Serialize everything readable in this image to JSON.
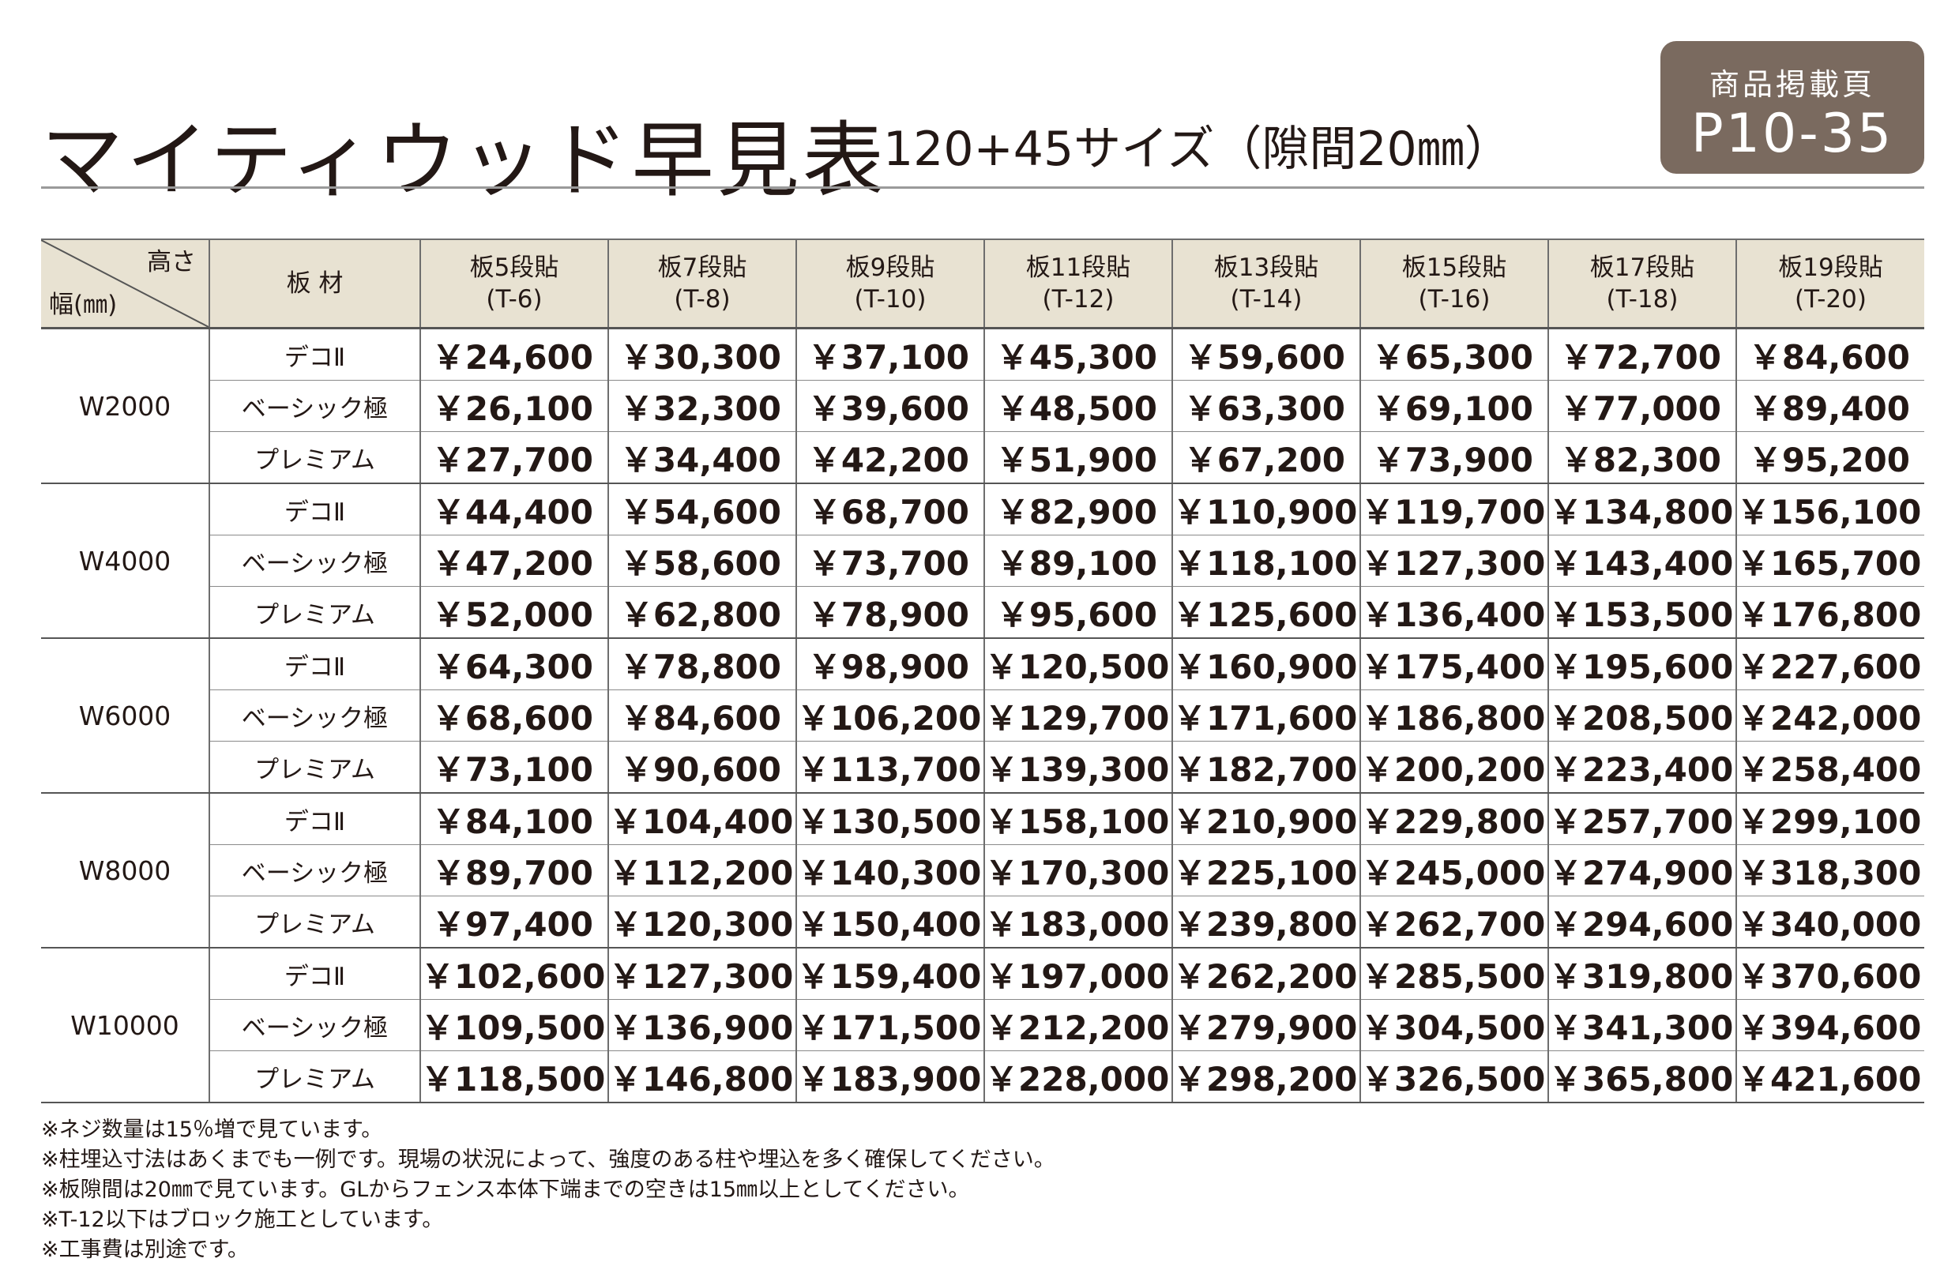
{
  "title": "マイティウッド早見表",
  "subtitle": "120+45サイズ（隙間20㎜）",
  "badge": {
    "line1": "商品掲載頁",
    "line2": "P10-35"
  },
  "table": {
    "corner": {
      "height_label": "高さ",
      "width_label": "幅(㎜)"
    },
    "material_header": "板 材",
    "columns": [
      {
        "name": "板5段貼",
        "code": "(T-6)"
      },
      {
        "name": "板7段貼",
        "code": "(T-8)"
      },
      {
        "name": "板9段貼",
        "code": "(T-10)"
      },
      {
        "name": "板11段貼",
        "code": "(T-12)"
      },
      {
        "name": "板13段貼",
        "code": "(T-14)"
      },
      {
        "name": "板15段貼",
        "code": "(T-16)"
      },
      {
        "name": "板17段貼",
        "code": "(T-18)"
      },
      {
        "name": "板19段貼",
        "code": "(T-20)"
      }
    ],
    "groups": [
      {
        "width": "W2000",
        "rows": [
          {
            "material": "デコⅡ",
            "prices": [
              "￥24,600",
              "￥30,300",
              "￥37,100",
              "￥45,300",
              "￥59,600",
              "￥65,300",
              "￥72,700",
              "￥84,600"
            ]
          },
          {
            "material": "ベーシック極",
            "prices": [
              "￥26,100",
              "￥32,300",
              "￥39,600",
              "￥48,500",
              "￥63,300",
              "￥69,100",
              "￥77,000",
              "￥89,400"
            ]
          },
          {
            "material": "プレミアム",
            "prices": [
              "￥27,700",
              "￥34,400",
              "￥42,200",
              "￥51,900",
              "￥67,200",
              "￥73,900",
              "￥82,300",
              "￥95,200"
            ]
          }
        ]
      },
      {
        "width": "W4000",
        "rows": [
          {
            "material": "デコⅡ",
            "prices": [
              "￥44,400",
              "￥54,600",
              "￥68,700",
              "￥82,900",
              "￥110,900",
              "￥119,700",
              "￥134,800",
              "￥156,100"
            ]
          },
          {
            "material": "ベーシック極",
            "prices": [
              "￥47,200",
              "￥58,600",
              "￥73,700",
              "￥89,100",
              "￥118,100",
              "￥127,300",
              "￥143,400",
              "￥165,700"
            ]
          },
          {
            "material": "プレミアム",
            "prices": [
              "￥52,000",
              "￥62,800",
              "￥78,900",
              "￥95,600",
              "￥125,600",
              "￥136,400",
              "￥153,500",
              "￥176,800"
            ]
          }
        ]
      },
      {
        "width": "W6000",
        "rows": [
          {
            "material": "デコⅡ",
            "prices": [
              "￥64,300",
              "￥78,800",
              "￥98,900",
              "￥120,500",
              "￥160,900",
              "￥175,400",
              "￥195,600",
              "￥227,600"
            ]
          },
          {
            "material": "ベーシック極",
            "prices": [
              "￥68,600",
              "￥84,600",
              "￥106,200",
              "￥129,700",
              "￥171,600",
              "￥186,800",
              "￥208,500",
              "￥242,000"
            ]
          },
          {
            "material": "プレミアム",
            "prices": [
              "￥73,100",
              "￥90,600",
              "￥113,700",
              "￥139,300",
              "￥182,700",
              "￥200,200",
              "￥223,400",
              "￥258,400"
            ]
          }
        ]
      },
      {
        "width": "W8000",
        "rows": [
          {
            "material": "デコⅡ",
            "prices": [
              "￥84,100",
              "￥104,400",
              "￥130,500",
              "￥158,100",
              "￥210,900",
              "￥229,800",
              "￥257,700",
              "￥299,100"
            ]
          },
          {
            "material": "ベーシック極",
            "prices": [
              "￥89,700",
              "￥112,200",
              "￥140,300",
              "￥170,300",
              "￥225,100",
              "￥245,000",
              "￥274,900",
              "￥318,300"
            ]
          },
          {
            "material": "プレミアム",
            "prices": [
              "￥97,400",
              "￥120,300",
              "￥150,400",
              "￥183,000",
              "￥239,800",
              "￥262,700",
              "￥294,600",
              "￥340,000"
            ]
          }
        ]
      },
      {
        "width": "W10000",
        "rows": [
          {
            "material": "デコⅡ",
            "prices": [
              "￥102,600",
              "￥127,300",
              "￥159,400",
              "￥197,000",
              "￥262,200",
              "￥285,500",
              "￥319,800",
              "￥370,600"
            ]
          },
          {
            "material": "ベーシック極",
            "prices": [
              "￥109,500",
              "￥136,900",
              "￥171,500",
              "￥212,200",
              "￥279,900",
              "￥304,500",
              "￥341,300",
              "￥394,600"
            ]
          },
          {
            "material": "プレミアム",
            "prices": [
              "￥118,500",
              "￥146,800",
              "￥183,900",
              "￥228,000",
              "￥298,200",
              "￥326,500",
              "￥365,800",
              "￥421,600"
            ]
          }
        ]
      }
    ]
  },
  "notes": [
    "※ネジ数量は15％増で見ています。",
    "※柱埋込寸法はあくまでも一例です。現場の状況によって、強度のある柱や埋込を多く確保してください。",
    "※板隙間は20㎜で見ています。GLからフェンス本体下端までの空きは15㎜以上としてください。",
    "※T-12以下はブロック施工としています。",
    "※工事費は別途です。"
  ],
  "colors": {
    "badge_bg": "#7a6a5f",
    "header_bg": "#e8e2d2",
    "text": "#231815"
  }
}
